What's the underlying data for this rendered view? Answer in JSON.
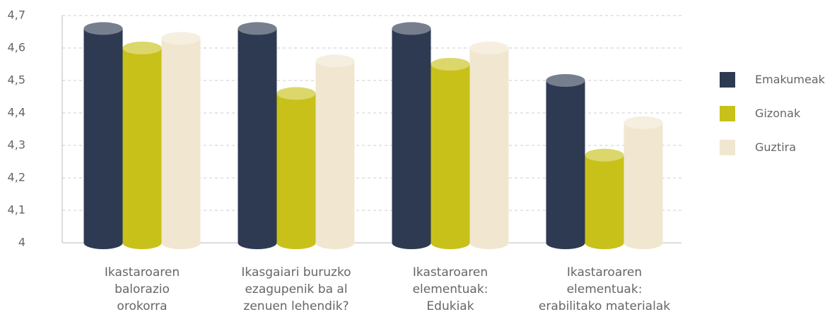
{
  "chart_data": {
    "type": "bar",
    "categories": [
      "Ikastaroaren\nbalorazio\norokorra",
      "Ikasgaiari buruzko\nezagupenik ba al\nzenuen lehendik?",
      "Ikastaroaren\nelementuak:\nEdukiak",
      "Ikastaroaren\nelementuak:\nerabilitako materialak"
    ],
    "series": [
      {
        "name": "Emakumeak",
        "color": "#2d3a52",
        "values": [
          4.66,
          4.66,
          4.66,
          4.5
        ]
      },
      {
        "name": "Gizonak",
        "color": "#c8c11a",
        "values": [
          4.6,
          4.46,
          4.55,
          4.27
        ]
      },
      {
        "name": "Guztira",
        "color": "#f1e6d0",
        "values": [
          4.63,
          4.56,
          4.6,
          4.37
        ]
      }
    ],
    "ylim": [
      4,
      4.7
    ],
    "yticks": [
      4,
      {
        "value": 4.1,
        "label": "4,1"
      },
      {
        "value": 4.2,
        "label": "4,2"
      },
      {
        "value": 4.3,
        "label": "4,3"
      },
      {
        "value": 4.4,
        "label": "4,4"
      },
      {
        "value": 4.5,
        "label": "4,5"
      },
      {
        "value": 4.6,
        "label": "4,6"
      },
      {
        "value": 4.7,
        "label": "4,7"
      }
    ],
    "grid": true,
    "legend": "right"
  }
}
